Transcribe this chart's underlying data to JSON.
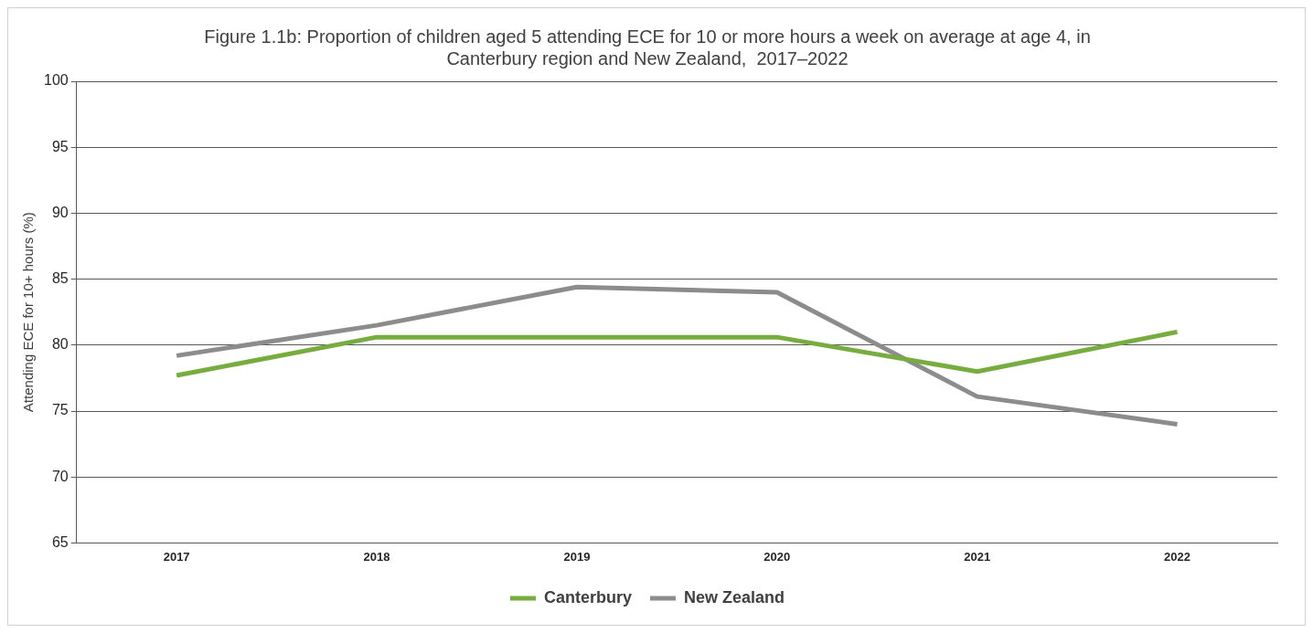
{
  "chart_data": {
    "type": "line",
    "title": "Figure 1.1b: Proportion of children aged 5 attending ECE for 10 or more hours a week on average at age 4, in Canterbury region and New Zealand,  2017–2022",
    "ylabel": "Attending ECE for 10+ hours (%)",
    "categories": [
      "2017",
      "2018",
      "2019",
      "2020",
      "2021",
      "2022"
    ],
    "series": [
      {
        "name": "Canterbury",
        "color": "#77ac3f",
        "values": [
          77.7,
          80.6,
          80.6,
          80.6,
          78.0,
          81.0
        ]
      },
      {
        "name": "New Zealand",
        "color": "#8c8c8c",
        "values": [
          79.2,
          81.5,
          84.4,
          84.0,
          76.1,
          74.0
        ]
      }
    ],
    "ylim": [
      65,
      100
    ],
    "yticks": [
      65,
      70,
      75,
      80,
      85,
      90,
      95,
      100
    ],
    "grid": "y",
    "legend": "bottom",
    "marker": "none",
    "line_style": "solid"
  }
}
